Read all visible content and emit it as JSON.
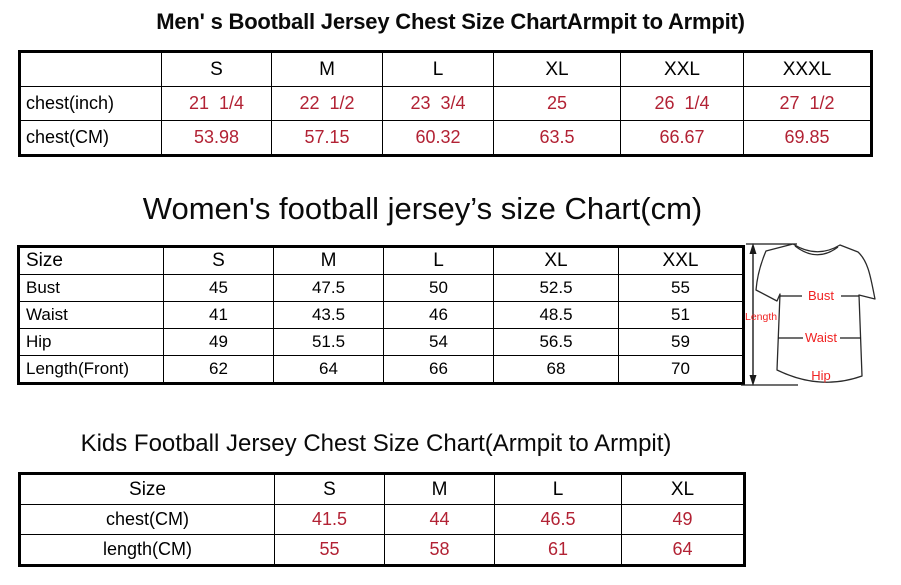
{
  "colors": {
    "table_value_red": "#B22234",
    "diagram_label_red": "#F02222",
    "border_black": "#000000",
    "background": "#ffffff"
  },
  "chart_data": [
    {
      "type": "table",
      "title": "Men' s Bootball Jersey Chest Size ChartArmpit to Armpit)",
      "columns": [
        "",
        "S",
        "M",
        "L",
        "XL",
        "XXL",
        "XXXL"
      ],
      "value_color": "#B22234",
      "rows": [
        {
          "label": "chest(inch)",
          "values": [
            "21  1/4",
            "22  1/2",
            "23  3/4",
            "25",
            "26  1/4",
            "27  1/2"
          ]
        },
        {
          "label": "chest(CM)",
          "values": [
            "53.98",
            "57.15",
            "60.32",
            "63.5",
            "66.67",
            "69.85"
          ]
        }
      ]
    },
    {
      "type": "table",
      "title": "Women's football jersey’s size Chart(cm)",
      "columns": [
        "Size",
        "S",
        "M",
        "L",
        "XL",
        "XXL"
      ],
      "value_color": "#000000",
      "rows": [
        {
          "label": "Bust",
          "values": [
            "45",
            "47.5",
            "50",
            "52.5",
            "55"
          ]
        },
        {
          "label": "Waist",
          "values": [
            "41",
            "43.5",
            "46",
            "48.5",
            "51"
          ]
        },
        {
          "label": "Hip",
          "values": [
            "49",
            "51.5",
            "54",
            "56.5",
            "59"
          ]
        },
        {
          "label": "Length(Front)",
          "values": [
            "62",
            "64",
            "66",
            "68",
            "70"
          ]
        }
      ]
    },
    {
      "type": "table",
      "title": "Kids Football Jersey Chest Size Chart(Armpit to Armpit)",
      "columns": [
        "Size",
        "S",
        "M",
        "L",
        "XL"
      ],
      "value_color": "#B22234",
      "rows": [
        {
          "label": "chest(CM)",
          "values": [
            "41.5",
            "44",
            "46.5",
            "49"
          ]
        },
        {
          "label": "length(CM)",
          "values": [
            "55",
            "58",
            "61",
            "64"
          ]
        }
      ]
    }
  ],
  "size_diagram": {
    "labels": {
      "length": "Length",
      "bust": "Bust",
      "waist": "Waist",
      "hip": "Hip"
    }
  }
}
